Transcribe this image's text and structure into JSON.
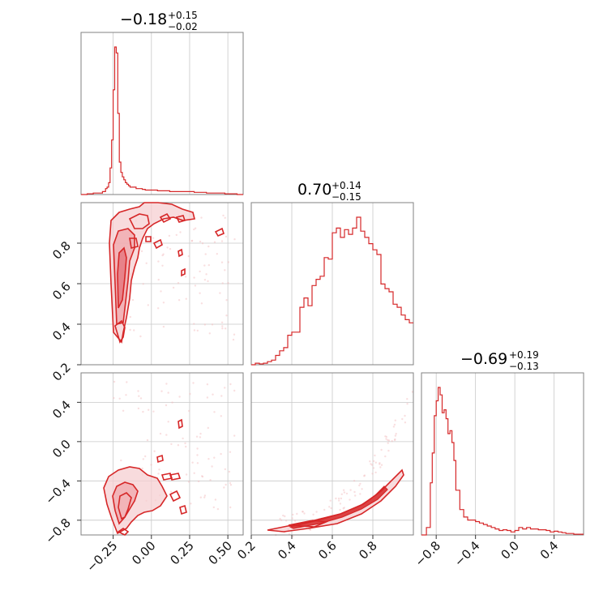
{
  "chart_data": {
    "type": "corner",
    "color": "#d62728",
    "parameters": [
      {
        "median": "−0.18",
        "plus": "+0.15",
        "minus": "−0.02",
        "range": [
          -0.46,
          0.6
        ],
        "ticks": [
          -0.25,
          0.0,
          0.25,
          0.5
        ],
        "tick_labels": [
          "−0.25",
          "0.00",
          "0.25",
          "0.50"
        ]
      },
      {
        "median": "0.70",
        "plus": "+0.14",
        "minus": "−0.15",
        "range": [
          0.2,
          1.0
        ],
        "ticks": [
          0.2,
          0.4,
          0.6,
          0.8
        ],
        "tick_labels": [
          "0.2",
          "0.4",
          "0.6",
          "0.8"
        ]
      },
      {
        "median": "−0.69",
        "plus": "+0.19",
        "minus": "−0.13",
        "range": [
          -0.95,
          0.7
        ],
        "ticks": [
          -0.8,
          -0.4,
          0.0,
          0.4
        ],
        "tick_labels": [
          "−0.8",
          "−0.4",
          "0.0",
          "0.4"
        ]
      }
    ],
    "histograms": [
      {
        "param": 0,
        "bins": [
          -0.46,
          -0.42,
          -0.38,
          -0.34,
          -0.32,
          -0.3,
          -0.29,
          -0.28,
          -0.27,
          -0.26,
          -0.25,
          -0.24,
          -0.23,
          -0.22,
          -0.21,
          -0.2,
          -0.19,
          -0.18,
          -0.17,
          -0.16,
          -0.15,
          -0.14,
          -0.12,
          -0.1,
          -0.08,
          -0.06,
          -0.04,
          -0.02,
          0.0,
          0.04,
          0.08,
          0.12,
          0.16,
          0.2,
          0.24,
          0.28,
          0.32,
          0.36,
          0.4,
          0.44,
          0.48,
          0.52,
          0.56,
          0.6
        ],
        "counts": [
          0.0,
          0.005,
          0.01,
          0.01,
          0.02,
          0.04,
          0.05,
          0.08,
          0.18,
          0.37,
          0.71,
          1.0,
          0.96,
          0.55,
          0.22,
          0.15,
          0.12,
          0.1,
          0.08,
          0.07,
          0.06,
          0.05,
          0.05,
          0.04,
          0.04,
          0.035,
          0.03,
          0.03,
          0.03,
          0.025,
          0.025,
          0.02,
          0.02,
          0.02,
          0.02,
          0.015,
          0.015,
          0.01,
          0.01,
          0.01,
          0.005,
          0.005,
          0.0
        ]
      },
      {
        "param": 1,
        "bins": [
          0.2,
          0.22,
          0.24,
          0.26,
          0.28,
          0.3,
          0.32,
          0.34,
          0.36,
          0.38,
          0.4,
          0.42,
          0.44,
          0.46,
          0.48,
          0.5,
          0.52,
          0.54,
          0.56,
          0.58,
          0.6,
          0.62,
          0.64,
          0.66,
          0.68,
          0.7,
          0.72,
          0.74,
          0.76,
          0.78,
          0.8,
          0.82,
          0.84,
          0.86,
          0.88,
          0.9,
          0.92,
          0.94,
          0.96,
          0.98,
          1.0
        ],
        "counts": [
          0.0,
          0.01,
          0.005,
          0.01,
          0.02,
          0.03,
          0.06,
          0.09,
          0.11,
          0.19,
          0.21,
          0.21,
          0.37,
          0.43,
          0.38,
          0.51,
          0.55,
          0.57,
          0.69,
          0.68,
          0.85,
          0.88,
          0.82,
          0.87,
          0.84,
          0.88,
          0.95,
          0.86,
          0.82,
          0.78,
          0.74,
          0.71,
          0.52,
          0.49,
          0.47,
          0.39,
          0.37,
          0.32,
          0.29,
          0.27
        ]
      },
      {
        "param": 2,
        "bins": [
          -0.95,
          -0.9,
          -0.86,
          -0.84,
          -0.82,
          -0.8,
          -0.78,
          -0.76,
          -0.74,
          -0.72,
          -0.7,
          -0.68,
          -0.66,
          -0.64,
          -0.62,
          -0.6,
          -0.56,
          -0.52,
          -0.48,
          -0.44,
          -0.4,
          -0.36,
          -0.32,
          -0.28,
          -0.24,
          -0.2,
          -0.16,
          -0.12,
          -0.08,
          -0.04,
          0.0,
          0.04,
          0.08,
          0.12,
          0.16,
          0.2,
          0.24,
          0.28,
          0.32,
          0.36,
          0.4,
          0.44,
          0.48,
          0.52,
          0.56,
          0.6,
          0.64,
          0.7
        ],
        "counts": [
          0.0,
          0.05,
          0.35,
          0.55,
          0.8,
          0.9,
          0.99,
          0.94,
          0.82,
          0.84,
          0.78,
          0.68,
          0.7,
          0.62,
          0.5,
          0.3,
          0.17,
          0.12,
          0.1,
          0.1,
          0.09,
          0.08,
          0.07,
          0.06,
          0.05,
          0.04,
          0.03,
          0.035,
          0.03,
          0.02,
          0.03,
          0.05,
          0.04,
          0.05,
          0.04,
          0.04,
          0.035,
          0.035,
          0.03,
          0.02,
          0.025,
          0.02,
          0.015,
          0.01,
          0.01,
          0.005,
          0.005
        ]
      }
    ]
  }
}
